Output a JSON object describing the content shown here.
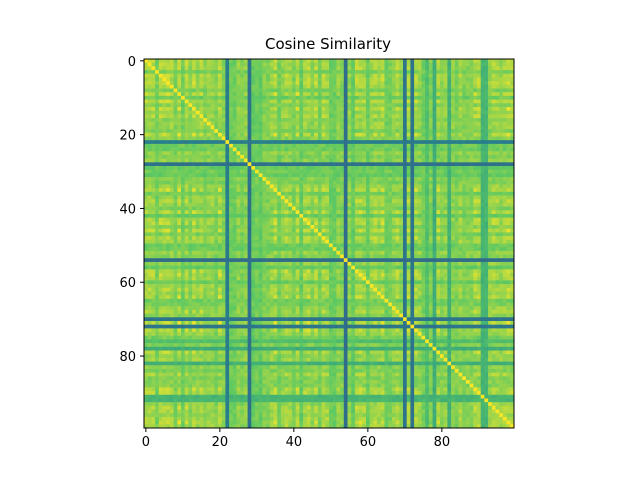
{
  "chart_data": {
    "type": "heatmap",
    "title": "Cosine Similarity",
    "xlabel": "",
    "ylabel": "",
    "size": 100,
    "x_ticks": [
      0,
      20,
      40,
      60,
      80
    ],
    "y_ticks": [
      0,
      20,
      40,
      60,
      80
    ],
    "xlim": [
      -0.5,
      99.5
    ],
    "ylim": [
      99.5,
      -0.5
    ],
    "colormap": "viridis",
    "vmin": 0.0,
    "vmax": 1.0,
    "diagonal_value": 1.0,
    "dark_bands": [
      22,
      28,
      54,
      70,
      72
    ],
    "description_low_rows_cols": [
      22,
      28,
      54,
      70,
      72
    ],
    "grid": false,
    "legend": "none"
  }
}
